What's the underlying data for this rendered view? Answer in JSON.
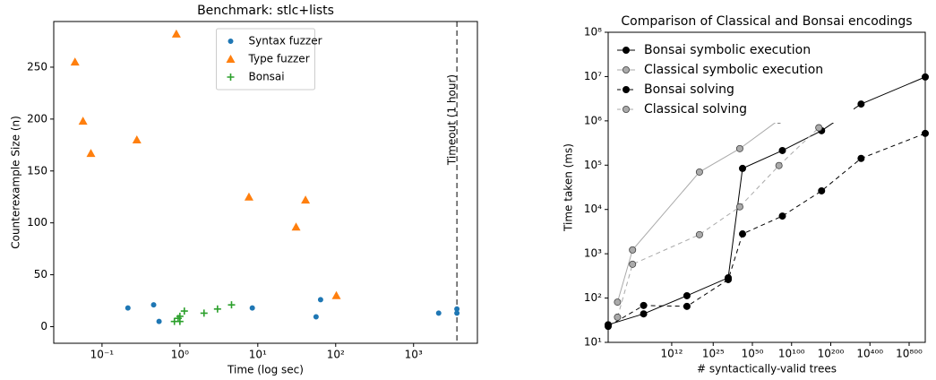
{
  "chart_data": [
    {
      "type": "scatter",
      "title": "Benchmark: stlc+lists",
      "x_label": "Time (log sec)",
      "y_label": "Counterexample Size (n)",
      "xscale": "log",
      "xlim": [
        0.024,
        6600
      ],
      "ylim": [
        -16,
        294
      ],
      "xticks": [
        {
          "value": 0.1,
          "label": "10⁻¹"
        },
        {
          "value": 1,
          "label": "10⁰"
        },
        {
          "value": 10,
          "label": "10¹"
        },
        {
          "value": 100,
          "label": "10²"
        },
        {
          "value": 1000,
          "label": "10³"
        }
      ],
      "yticks": [
        0,
        50,
        100,
        150,
        200,
        250
      ],
      "legend": "upper center",
      "annotation": {
        "text": "Timeout (1 hour)",
        "x": 3600
      },
      "series": [
        {
          "name": "Syntax fuzzer",
          "color": "#1f77b4",
          "marker": "circle",
          "x": [
            0.215,
            0.46,
            0.54,
            8.5,
            56,
            64,
            2100,
            3600,
            3600
          ],
          "values": [
            18,
            21,
            5,
            18,
            9.5,
            26,
            13,
            17,
            13
          ]
        },
        {
          "name": "Type fuzzer",
          "color": "#ff7f0e",
          "marker": "triangle",
          "x": [
            0.045,
            0.057,
            0.072,
            0.28,
            0.9,
            7.7,
            31,
            41,
            102
          ],
          "values": [
            255,
            198,
            167,
            180,
            282,
            125,
            96,
            122,
            30
          ]
        },
        {
          "name": "Bonsai",
          "color": "#2ca02c",
          "marker": "plus",
          "x": [
            0.85,
            0.95,
            1.0,
            1.0,
            1.14,
            2.04,
            3.04,
            4.6
          ],
          "values": [
            5,
            8,
            5,
            10,
            15,
            13,
            17,
            21
          ]
        }
      ]
    },
    {
      "type": "line",
      "title": "Comparison of Classical and Bonsai encodings",
      "x_label": "# syntactically-valid trees",
      "y_label": "Time taken (ms)",
      "xscale": "log",
      "yscale": "log",
      "xlim": [
        3.9,
        1064
      ],
      "ylim": [
        10,
        100000000
      ],
      "xticks": [
        {
          "value": 12,
          "label": "10¹²"
        },
        {
          "value": 25,
          "label": "10²⁵"
        },
        {
          "value": 50,
          "label": "10⁵⁰"
        },
        {
          "value": 100,
          "label": "10¹⁰⁰"
        },
        {
          "value": 200,
          "label": "10²⁰⁰"
        },
        {
          "value": 400,
          "label": "10⁴⁰⁰"
        },
        {
          "value": 800,
          "label": "10⁸⁰⁰"
        }
      ],
      "yticks": [
        {
          "value": 10,
          "label": "10¹"
        },
        {
          "value": 100,
          "label": "10²"
        },
        {
          "value": 1000,
          "label": "10³"
        },
        {
          "value": 10000,
          "label": "10⁴"
        },
        {
          "value": 100000,
          "label": "10⁵"
        },
        {
          "value": 1000000,
          "label": "10⁶"
        },
        {
          "value": 10000000,
          "label": "10⁷"
        },
        {
          "value": 100000000,
          "label": "10⁸"
        }
      ],
      "legend": "upper left",
      "series": [
        {
          "name": "Bonsai symbolic execution",
          "color": "#000000",
          "marker": "circle",
          "linestyle": "solid",
          "x": [
            3.9,
            7.3,
            15.7,
            32.6,
            42,
            85,
            170,
            342,
            1064
          ],
          "values": [
            25,
            44,
            113,
            287,
            84500,
            214000,
            600000,
            2400000,
            9800000
          ]
        },
        {
          "name": "Classical symbolic execution",
          "color": "#aaaaaa",
          "marker": "circle",
          "linestyle": "solid",
          "x": [
            4.6,
            6.0,
            19.6,
            40,
            80,
            162
          ],
          "values": [
            81,
            1220,
            70000,
            236000,
            1050000,
            6450000
          ]
        },
        {
          "name": "Bonsai solving",
          "color": "#000000",
          "marker": "circle",
          "linestyle": "dashed",
          "x": [
            3.9,
            7.3,
            15.7,
            32.6,
            42,
            85,
            170,
            342,
            1064
          ],
          "values": [
            23,
            68,
            65,
            261,
            2800,
            7100,
            26300,
            142000,
            521000
          ]
        },
        {
          "name": "Classical solving",
          "color": "#aaaaaa",
          "marker": "circle",
          "linestyle": "dashed",
          "x": [
            4.6,
            6.0,
            19.6,
            40,
            80,
            162
          ],
          "values": [
            37,
            580,
            2700,
            11500,
            98000,
            700000
          ]
        }
      ]
    }
  ]
}
